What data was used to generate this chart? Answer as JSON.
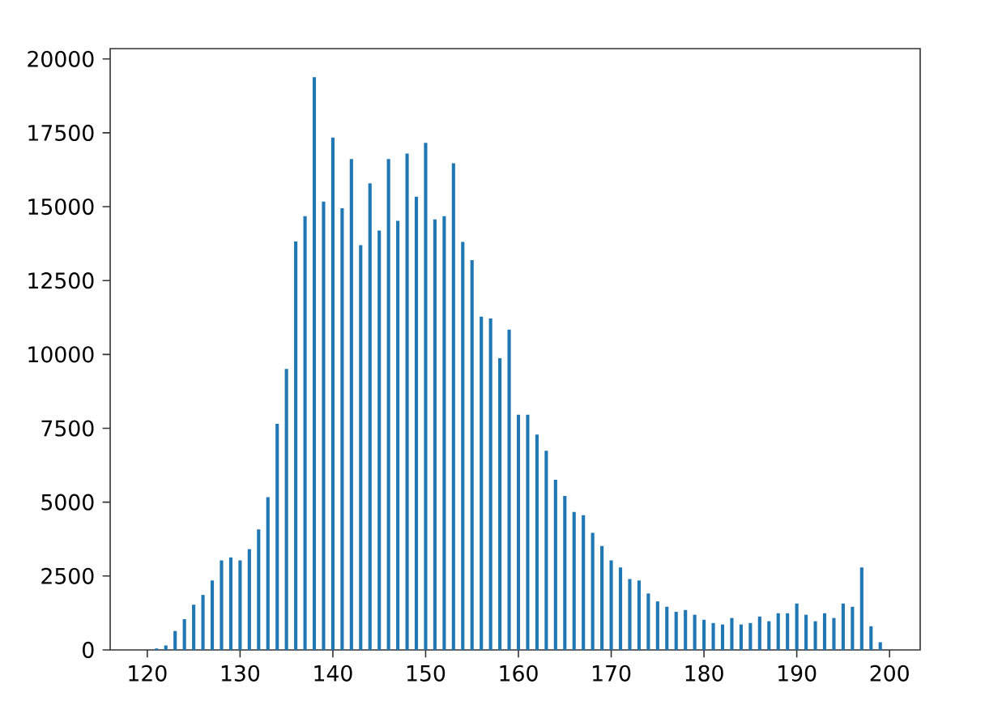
{
  "chart_data": {
    "type": "bar",
    "x": [
      121,
      122,
      123,
      124,
      125,
      126,
      127,
      128,
      129,
      130,
      131,
      132,
      133,
      134,
      135,
      136,
      137,
      138,
      139,
      140,
      141,
      142,
      143,
      144,
      145,
      146,
      147,
      148,
      149,
      150,
      151,
      152,
      153,
      154,
      155,
      156,
      157,
      158,
      159,
      160,
      161,
      162,
      163,
      164,
      165,
      166,
      167,
      168,
      169,
      170,
      171,
      172,
      173,
      174,
      175,
      176,
      177,
      178,
      179,
      180,
      181,
      182,
      183,
      184,
      185,
      186,
      187,
      188,
      189,
      190,
      191,
      192,
      193,
      194,
      195,
      196,
      197,
      198,
      199
    ],
    "values": [
      50,
      150,
      640,
      1040,
      1530,
      1860,
      2350,
      3030,
      3130,
      3030,
      3410,
      4080,
      5170,
      7650,
      9510,
      13820,
      14680,
      19380,
      15170,
      17340,
      14950,
      16610,
      13700,
      15790,
      14190,
      16610,
      14520,
      16800,
      15340,
      17160,
      14570,
      14680,
      16470,
      13810,
      13190,
      11280,
      11220,
      9870,
      10840,
      7960,
      7960,
      7290,
      6740,
      5760,
      5210,
      4670,
      4560,
      3960,
      3520,
      3030,
      2790,
      2400,
      2350,
      1910,
      1640,
      1460,
      1290,
      1350,
      1190,
      1020,
      910,
      860,
      1080,
      860,
      910,
      1130,
      970,
      1240,
      1240,
      1570,
      1190,
      970,
      1240,
      1080,
      1570,
      1460,
      2790,
      800,
      260
    ],
    "color": "#1f77b4",
    "xlim": [
      116,
      203.3
    ],
    "ylim": [
      0,
      20350
    ],
    "xticks": [
      120,
      130,
      140,
      150,
      160,
      170,
      180,
      190,
      200
    ],
    "yticks": [
      0,
      2500,
      5000,
      7500,
      10000,
      12500,
      15000,
      17500,
      20000
    ],
    "grid": false
  }
}
